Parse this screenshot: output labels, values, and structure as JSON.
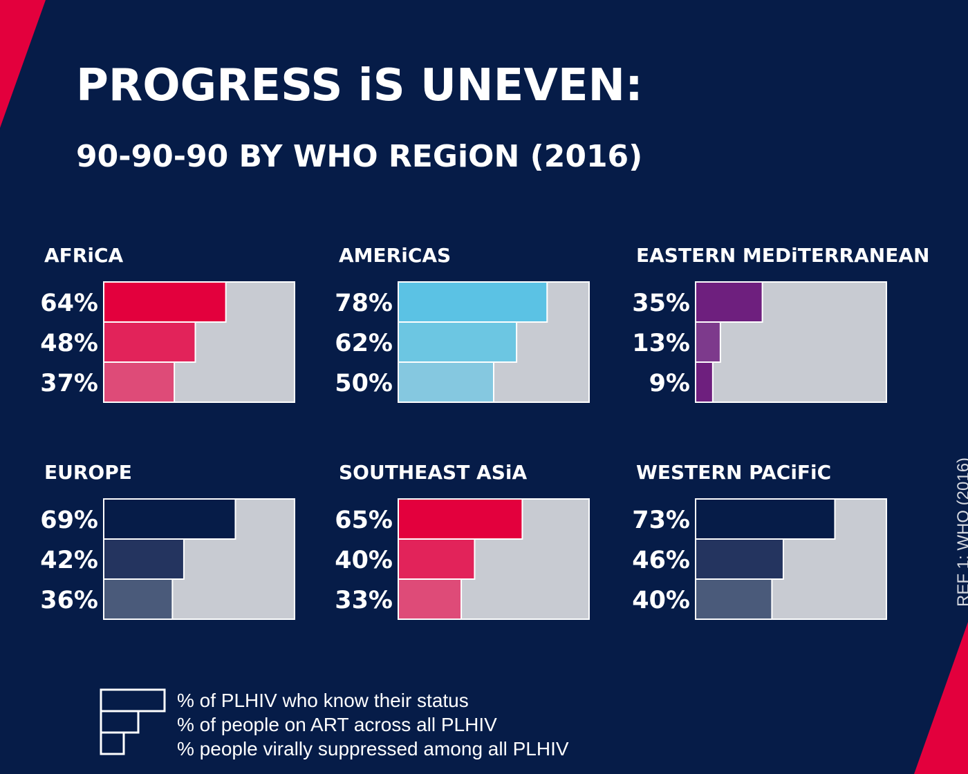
{
  "title": "PROGRESS iS UNEVEN:",
  "subtitle": "90-90-90 BY WHO REGiON (2016)",
  "reference": "REF 1: WHO (2016)",
  "colors": {
    "background": "#061c48",
    "accent": "#e3003d",
    "track": "#c8cbd2"
  },
  "legend": {
    "items": [
      "% of PLHIV who know their status",
      "% of people on ART across all PLHIV",
      "% people virally suppressed among all PLHIV"
    ]
  },
  "chart_data": [
    {
      "type": "bar",
      "title": "AFRiCA",
      "categories": [
        "% of PLHIV who know their status",
        "% of people on ART across all PLHIV",
        "% people virally suppressed among all PLHIV"
      ],
      "values": [
        64,
        48,
        37
      ],
      "labels": [
        "64%",
        "48%",
        "37%"
      ],
      "colors": [
        "#e3003d",
        "#e2235a",
        "#de4b78"
      ],
      "ylim": [
        0,
        100
      ]
    },
    {
      "type": "bar",
      "title": "AMERiCAS",
      "categories": [
        "% of PLHIV who know their status",
        "% of people on ART across all PLHIV",
        "% people virally suppressed among all PLHIV"
      ],
      "values": [
        78,
        62,
        50
      ],
      "labels": [
        "78%",
        "62%",
        "50%"
      ],
      "colors": [
        "#5bc2e4",
        "#6cc6e2",
        "#85c8e0"
      ],
      "ylim": [
        0,
        100
      ]
    },
    {
      "type": "bar",
      "title": "EASTERN MEDiTERRANEAN",
      "categories": [
        "% of PLHIV who know their status",
        "% of people on ART across all PLHIV",
        "% people virally suppressed among all PLHIV"
      ],
      "values": [
        35,
        13,
        9
      ],
      "labels": [
        "35%",
        "13%",
        "9%"
      ],
      "colors": [
        "#6e1f7e",
        "#7d3a8c",
        "#6e1f7e"
      ],
      "ylim": [
        0,
        100
      ]
    },
    {
      "type": "bar",
      "title": "EUROPE",
      "categories": [
        "% of PLHIV who know their status",
        "% of people on ART across all PLHIV",
        "% people virally suppressed among all PLHIV"
      ],
      "values": [
        69,
        42,
        36
      ],
      "labels": [
        "69%",
        "42%",
        "36%"
      ],
      "colors": [
        "#061c48",
        "#24345f",
        "#4a5a7a"
      ],
      "ylim": [
        0,
        100
      ]
    },
    {
      "type": "bar",
      "title": "SOUTHEAST ASiA",
      "categories": [
        "% of PLHIV who know their status",
        "% of people on ART across all PLHIV",
        "% people virally suppressed among all PLHIV"
      ],
      "values": [
        65,
        40,
        33
      ],
      "labels": [
        "65%",
        "40%",
        "33%"
      ],
      "colors": [
        "#e3003d",
        "#e2235a",
        "#de4b78"
      ],
      "ylim": [
        0,
        100
      ]
    },
    {
      "type": "bar",
      "title": "WESTERN PACiFiC",
      "categories": [
        "% of PLHIV who know their status",
        "% of people on ART across all PLHIV",
        "% people virally suppressed among all PLHIV"
      ],
      "values": [
        73,
        46,
        40
      ],
      "labels": [
        "73%",
        "46%",
        "40%"
      ],
      "colors": [
        "#061c48",
        "#24345f",
        "#4a5a7a"
      ],
      "ylim": [
        0,
        100
      ]
    }
  ]
}
